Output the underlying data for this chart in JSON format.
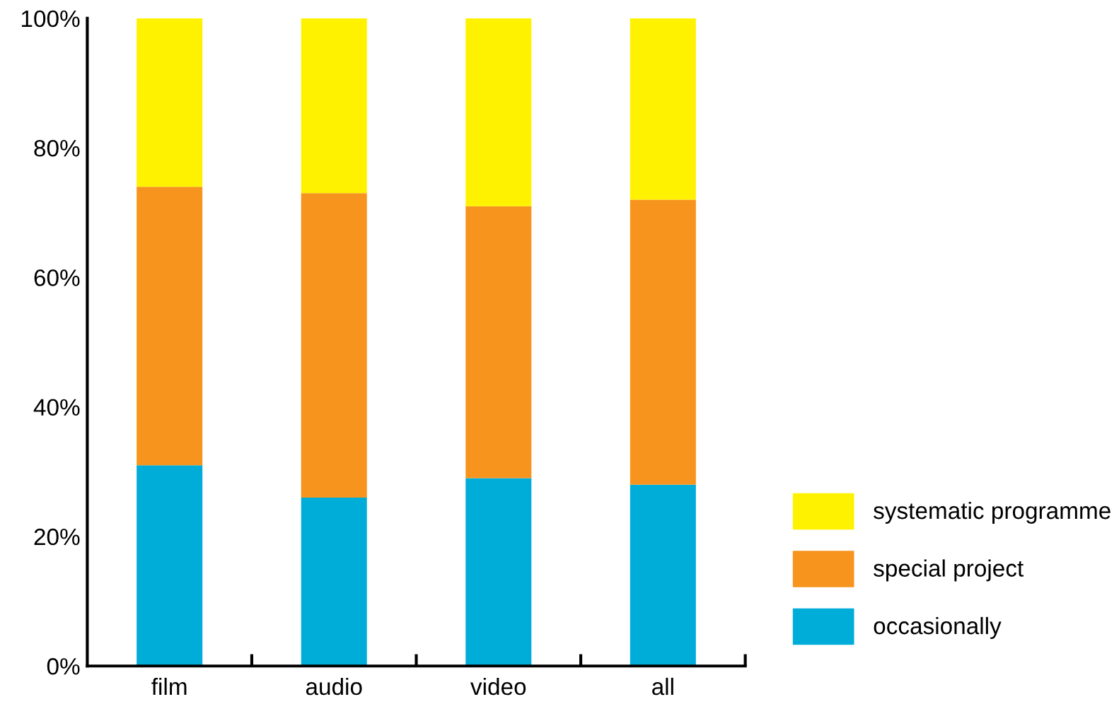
{
  "chart_data": {
    "type": "bar",
    "stacked": true,
    "categories": [
      "film",
      "audio",
      "video",
      "all"
    ],
    "series": [
      {
        "name": "occasionally",
        "color": "#00acd8",
        "values": [
          31,
          26,
          29,
          28
        ]
      },
      {
        "name": "special project",
        "color": "#f7941d",
        "values": [
          43,
          47,
          42,
          44
        ]
      },
      {
        "name": "systematic programme",
        "color": "#fff200",
        "values": [
          26,
          27,
          29,
          28
        ]
      }
    ],
    "ylim": [
      0,
      100
    ],
    "yticks": [
      {
        "value": 0,
        "label": "0%"
      },
      {
        "value": 20,
        "label": "20%"
      },
      {
        "value": 40,
        "label": "40%"
      },
      {
        "value": 60,
        "label": "60%"
      },
      {
        "value": 80,
        "label": "80%"
      },
      {
        "value": 100,
        "label": "100%"
      }
    ],
    "grid": false,
    "legend": "bottom right"
  }
}
